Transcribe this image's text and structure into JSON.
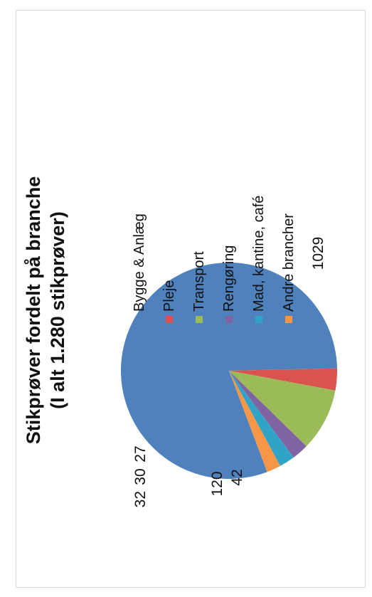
{
  "chart_data": {
    "type": "pie",
    "title": [
      "Stikprøver fordelt på branche",
      "(I alt 1.280 stikprøver)"
    ],
    "orientation": "rotated-90-ccw",
    "categories": [
      "Bygge & Anlæg",
      "Pleje",
      "Transport",
      "Rengøring",
      "Mad, kantine, café",
      "Andre brancher"
    ],
    "values": [
      1029,
      42,
      120,
      32,
      30,
      27
    ],
    "colors": [
      "#4f81bd",
      "#d9534f",
      "#9bbb59",
      "#8064a2",
      "#31a3c6",
      "#f79646"
    ],
    "data_labels": [
      "1029",
      "42",
      "120",
      "32",
      "30",
      "27"
    ],
    "legend_position": "right"
  }
}
